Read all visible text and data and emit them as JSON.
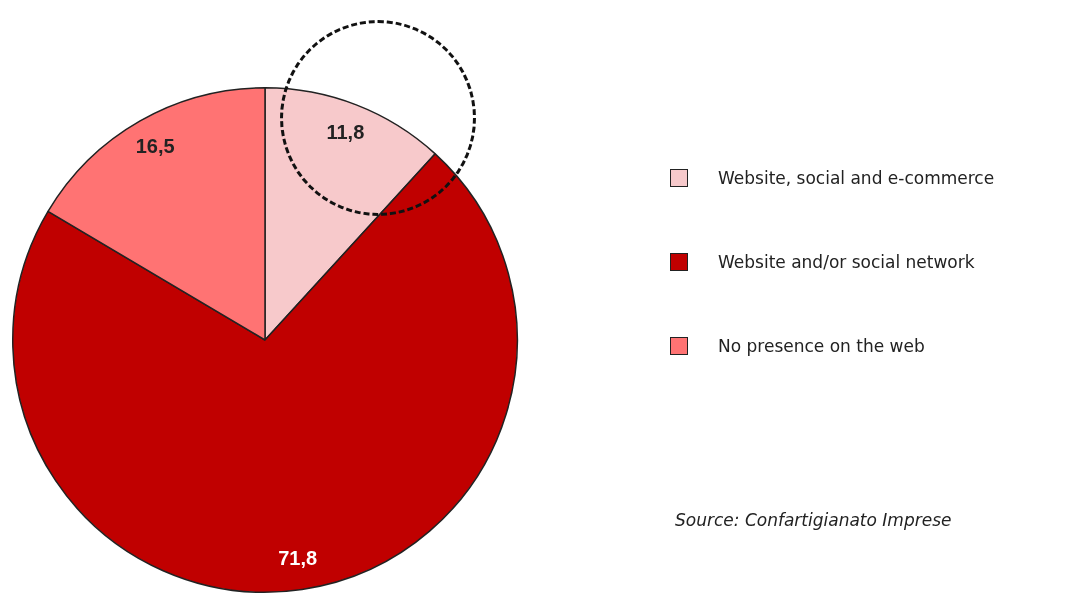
{
  "chart_data": {
    "type": "pie",
    "categories": [
      "Website, social and e-commerce",
      "Website and/or social network",
      "No presence on the web"
    ],
    "values": [
      11.8,
      71.8,
      16.5
    ],
    "colors": [
      "#f7c9cb",
      "#c00000",
      "#ff7373"
    ],
    "value_labels": [
      "11,8",
      "71,8",
      "16,5"
    ],
    "legend": "right",
    "annotations": [
      "Source: Confartigianato Imprese"
    ]
  }
}
